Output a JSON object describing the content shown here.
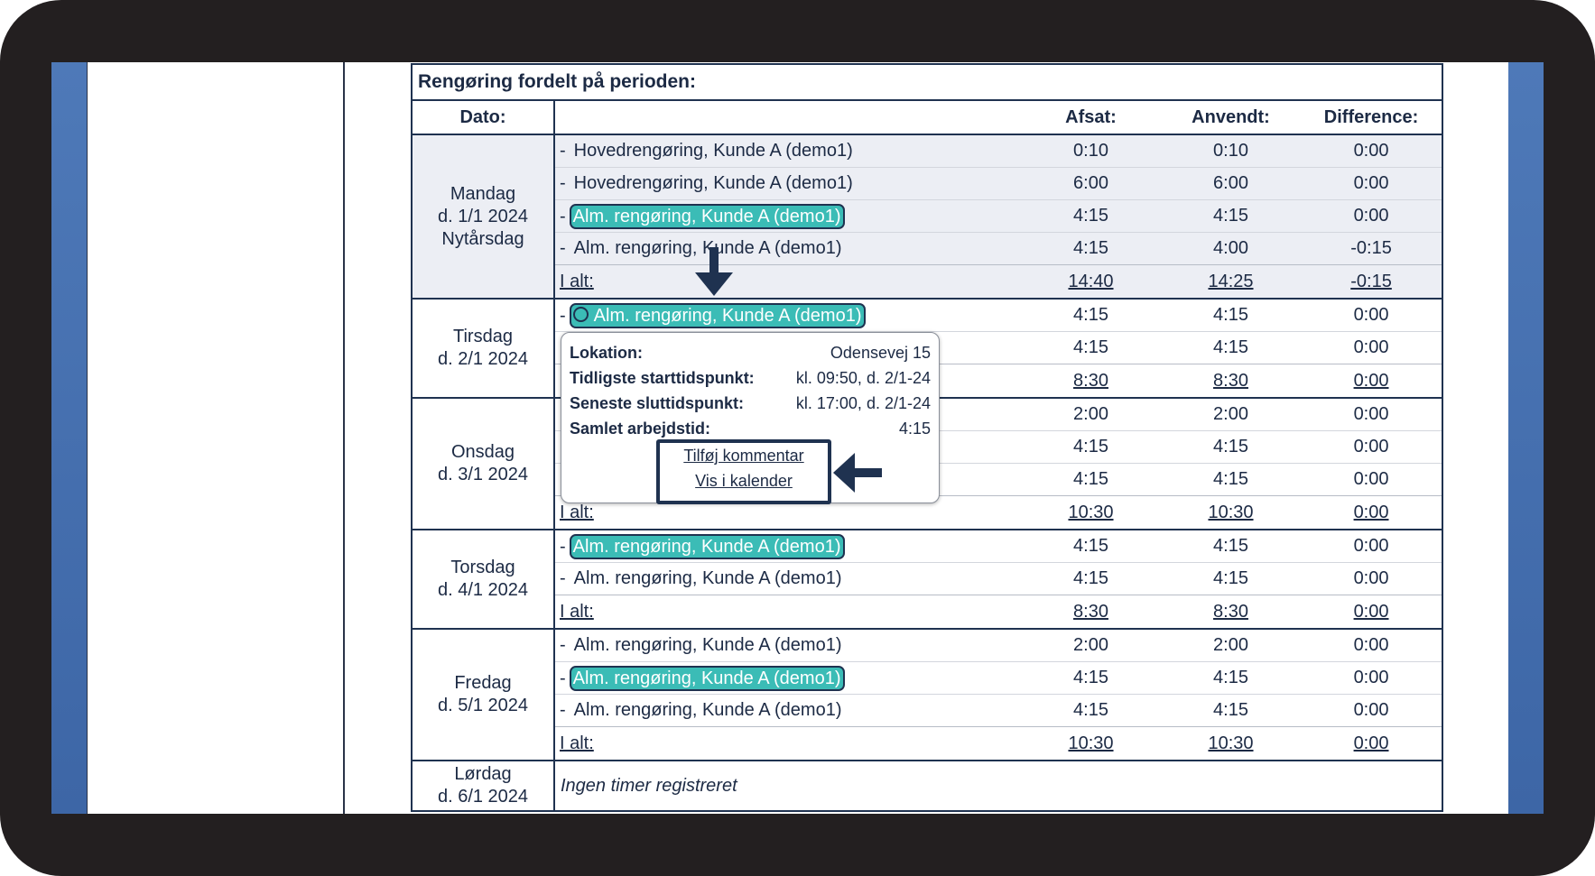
{
  "table": {
    "title": "Rengøring fordelt på perioden:",
    "headers": {
      "date": "Dato:",
      "allocated": "Afsat:",
      "used": "Anvendt:",
      "difference": "Difference:"
    },
    "bullet": "-",
    "days": [
      {
        "date": [
          "Mandag",
          "d. 1/1 2024",
          "Nytårsdag"
        ],
        "shaded": true,
        "rows": [
          {
            "text": "Hovedrengøring, Kunde A (demo1)",
            "allocated": "0:10",
            "used": "0:10",
            "difference": "0:00"
          },
          {
            "text": "Hovedrengøring, Kunde A (demo1)",
            "allocated": "6:00",
            "used": "6:00",
            "difference": "0:00"
          },
          {
            "text": "Alm. rengøring, Kunde A (demo1)",
            "allocated": "4:15",
            "used": "4:15",
            "difference": "0:00",
            "highlighted": true
          },
          {
            "text": "Alm. rengøring, Kunde A (demo1)",
            "allocated": "4:15",
            "used": "4:00",
            "difference": "-0:15"
          }
        ],
        "total": {
          "label": "I alt:",
          "allocated": "14:40",
          "used": "14:25",
          "difference": "-0:15"
        }
      },
      {
        "date": [
          "Tirsdag",
          "d. 2/1 2024"
        ],
        "rows": [
          {
            "text": "Alm. rengøring, Kunde A (demo1)",
            "allocated": "4:15",
            "used": "4:15",
            "difference": "0:00",
            "highlighted": true,
            "selected": true
          },
          {
            "allocated": "4:15",
            "used": "4:15",
            "difference": "0:00"
          }
        ],
        "total": {
          "allocated": "8:30",
          "used": "8:30",
          "difference": "0:00"
        }
      },
      {
        "date": [
          "Onsdag",
          "d. 3/1 2024"
        ],
        "rows": [
          {
            "allocated": "2:00",
            "used": "2:00",
            "difference": "0:00"
          },
          {
            "allocated": "4:15",
            "used": "4:15",
            "difference": "0:00"
          },
          {
            "allocated": "4:15",
            "used": "4:15",
            "difference": "0:00"
          }
        ],
        "total": {
          "label": "I alt:",
          "allocated": "10:30",
          "used": "10:30",
          "difference": "0:00"
        }
      },
      {
        "date": [
          "Torsdag",
          "d. 4/1 2024"
        ],
        "rows": [
          {
            "text": "Alm. rengøring, Kunde A (demo1)",
            "allocated": "4:15",
            "used": "4:15",
            "difference": "0:00",
            "highlighted": true
          },
          {
            "text": "Alm. rengøring, Kunde A (demo1)",
            "allocated": "4:15",
            "used": "4:15",
            "difference": "0:00"
          }
        ],
        "total": {
          "label": "I alt:",
          "allocated": "8:30",
          "used": "8:30",
          "difference": "0:00"
        }
      },
      {
        "date": [
          "Fredag",
          "d. 5/1 2024"
        ],
        "rows": [
          {
            "text": "Alm. rengøring, Kunde A (demo1)",
            "allocated": "2:00",
            "used": "2:00",
            "difference": "0:00"
          },
          {
            "text": "Alm. rengøring, Kunde A (demo1)",
            "allocated": "4:15",
            "used": "4:15",
            "difference": "0:00",
            "highlighted": true
          },
          {
            "text": "Alm. rengøring, Kunde A (demo1)",
            "allocated": "4:15",
            "used": "4:15",
            "difference": "0:00"
          }
        ],
        "total": {
          "label": "I alt:",
          "allocated": "10:30",
          "used": "10:30",
          "difference": "0:00"
        }
      },
      {
        "date": [
          "Lørdag",
          "d. 6/1 2024"
        ],
        "note": "Ingen timer registreret"
      }
    ]
  },
  "popup": {
    "rows": [
      {
        "label": "Lokation:",
        "value": "Odensevej 15"
      },
      {
        "label": "Tidligste starttidspunkt:",
        "value": "kl. 09:50, d. 2/1-24"
      },
      {
        "label": "Seneste sluttidspunkt:",
        "value": "kl. 17:00, d. 2/1-24"
      },
      {
        "label": "Samlet arbejdstid:",
        "value": "4:15"
      }
    ],
    "links": [
      "Tilføj kommentar",
      "Vis i kalender"
    ]
  }
}
